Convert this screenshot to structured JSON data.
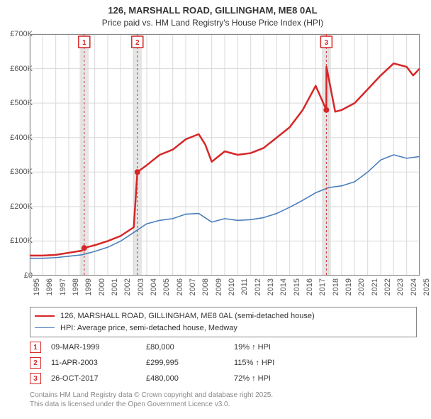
{
  "title_line1": "126, MARSHALL ROAD, GILLINGHAM, ME8 0AL",
  "title_line2": "Price paid vs. HM Land Registry's House Price Index (HPI)",
  "title_fontsize": 13,
  "subtitle_fontsize": 12,
  "chart": {
    "type": "line",
    "background_color": "#ffffff",
    "grid_color": "#d9d9d9",
    "border_color": "#888888",
    "xlim": [
      1995,
      2025
    ],
    "ylim": [
      0,
      700000
    ],
    "ytick_step": 100000,
    "ytick_labels": [
      "£0",
      "£100K",
      "£200K",
      "£300K",
      "£400K",
      "£500K",
      "£600K",
      "£700K"
    ],
    "xtick_years": [
      1995,
      1996,
      1997,
      1998,
      1999,
      2000,
      2001,
      2002,
      2003,
      2004,
      2005,
      2006,
      2007,
      2008,
      2009,
      2010,
      2011,
      2012,
      2013,
      2014,
      2015,
      2016,
      2017,
      2018,
      2019,
      2020,
      2021,
      2022,
      2023,
      2024,
      2025
    ],
    "axis_label_fontsize": 11,
    "axis_label_color": "#555555",
    "series_price_paid": {
      "label": "126, MARSHALL ROAD, GILLINGHAM, ME8 0AL (semi-detached house)",
      "color": "#d62728",
      "line_width": 2.5,
      "points": [
        [
          1995.0,
          58000
        ],
        [
          1996.0,
          58000
        ],
        [
          1997.0,
          60000
        ],
        [
          1998.0,
          66000
        ],
        [
          1999.0,
          72000
        ],
        [
          1999.19,
          80000
        ],
        [
          2000.0,
          88000
        ],
        [
          2001.0,
          100000
        ],
        [
          2002.0,
          115000
        ],
        [
          2003.0,
          140000
        ],
        [
          2003.28,
          299995
        ],
        [
          2004.0,
          320000
        ],
        [
          2005.0,
          350000
        ],
        [
          2006.0,
          365000
        ],
        [
          2007.0,
          395000
        ],
        [
          2008.0,
          410000
        ],
        [
          2008.5,
          380000
        ],
        [
          2009.0,
          330000
        ],
        [
          2010.0,
          360000
        ],
        [
          2011.0,
          350000
        ],
        [
          2012.0,
          355000
        ],
        [
          2013.0,
          370000
        ],
        [
          2014.0,
          400000
        ],
        [
          2015.0,
          430000
        ],
        [
          2016.0,
          480000
        ],
        [
          2017.0,
          550000
        ],
        [
          2017.82,
          480000
        ],
        [
          2017.83,
          605000
        ],
        [
          2018.5,
          475000
        ],
        [
          2019.0,
          480000
        ],
        [
          2020.0,
          500000
        ],
        [
          2021.0,
          540000
        ],
        [
          2022.0,
          580000
        ],
        [
          2023.0,
          615000
        ],
        [
          2024.0,
          605000
        ],
        [
          2024.5,
          580000
        ],
        [
          2025.0,
          600000
        ]
      ]
    },
    "series_hpi": {
      "label": "HPI: Average price, semi-detached house, Medway",
      "color": "#4a7ebb",
      "line_width": 1.6,
      "points": [
        [
          1995.0,
          50000
        ],
        [
          1996.0,
          50000
        ],
        [
          1997.0,
          52000
        ],
        [
          1998.0,
          56000
        ],
        [
          1999.0,
          60000
        ],
        [
          2000.0,
          70000
        ],
        [
          2001.0,
          82000
        ],
        [
          2002.0,
          100000
        ],
        [
          2003.0,
          125000
        ],
        [
          2004.0,
          150000
        ],
        [
          2005.0,
          160000
        ],
        [
          2006.0,
          165000
        ],
        [
          2007.0,
          178000
        ],
        [
          2008.0,
          180000
        ],
        [
          2009.0,
          155000
        ],
        [
          2010.0,
          165000
        ],
        [
          2011.0,
          160000
        ],
        [
          2012.0,
          162000
        ],
        [
          2013.0,
          168000
        ],
        [
          2014.0,
          180000
        ],
        [
          2015.0,
          198000
        ],
        [
          2016.0,
          218000
        ],
        [
          2017.0,
          240000
        ],
        [
          2018.0,
          255000
        ],
        [
          2019.0,
          260000
        ],
        [
          2020.0,
          272000
        ],
        [
          2021.0,
          300000
        ],
        [
          2022.0,
          335000
        ],
        [
          2023.0,
          350000
        ],
        [
          2024.0,
          340000
        ],
        [
          2025.0,
          345000
        ]
      ]
    },
    "sale_markers": [
      {
        "n": "1",
        "year": 1999.19,
        "value": 80000,
        "color": "#d62728"
      },
      {
        "n": "2",
        "year": 2003.28,
        "value": 299995,
        "color": "#d62728"
      },
      {
        "n": "3",
        "year": 2017.82,
        "value": 480000,
        "color": "#d62728"
      }
    ],
    "sale_band_color": "#e6e6e6",
    "sale_band_halfwidth_years": 0.35
  },
  "legend": {
    "border_color": "#888888",
    "fontsize": 11,
    "items": [
      {
        "color": "#d62728",
        "width": 2.5,
        "label_bind": "chart.series_price_paid.label"
      },
      {
        "color": "#4a7ebb",
        "width": 1.6,
        "label_bind": "chart.series_hpi.label"
      }
    ]
  },
  "sale_table": {
    "marker_border_color": "#d62728",
    "marker_text_color": "#d62728",
    "fontsize": 11,
    "rows": [
      {
        "n": "1",
        "date": "09-MAR-1999",
        "price": "£80,000",
        "delta": "19% ↑ HPI"
      },
      {
        "n": "2",
        "date": "11-APR-2003",
        "price": "£299,995",
        "delta": "115% ↑ HPI"
      },
      {
        "n": "3",
        "date": "26-OCT-2017",
        "price": "£480,000",
        "delta": "72% ↑ HPI"
      }
    ]
  },
  "footer_line1": "Contains HM Land Registry data © Crown copyright and database right 2025.",
  "footer_line2": "This data is licensed under the Open Government Licence v3.0.",
  "footer_color": "#888888",
  "footer_fontsize": 10
}
